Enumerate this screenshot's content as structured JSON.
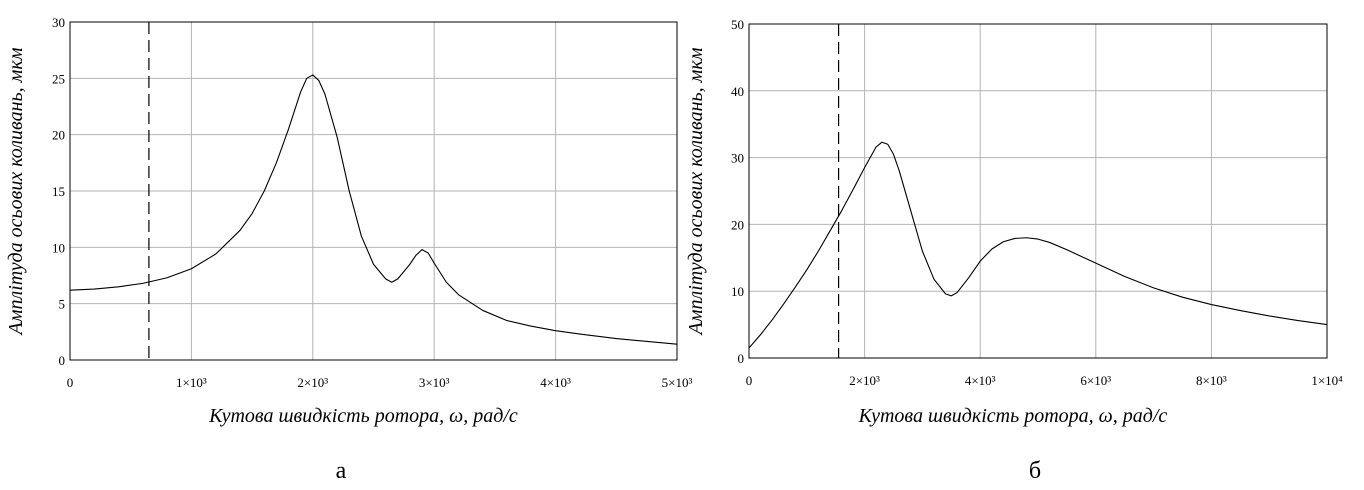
{
  "chart_data": [
    {
      "type": "line",
      "panel_label": "а",
      "xlabel": "Кутова швидкість ротора, ω, рад/с",
      "ylabel": "Амплітуда осьових коливань, мкм",
      "xlim": [
        0,
        5000
      ],
      "ylim": [
        0,
        30
      ],
      "x_ticks": [
        0,
        1000,
        2000,
        3000,
        4000,
        5000
      ],
      "x_tick_labels": [
        "0",
        "1×10³",
        "2×10³",
        "3×10³",
        "4×10³",
        "5×10³"
      ],
      "y_ticks": [
        0,
        5,
        10,
        15,
        20,
        25,
        30
      ],
      "y_tick_labels": [
        "0",
        "5",
        "10",
        "15",
        "20",
        "25",
        "30"
      ],
      "grid": true,
      "vertical_marker_x": 650,
      "series": [
        {
          "x": [
            0,
            200,
            400,
            600,
            800,
            1000,
            1200,
            1400,
            1500,
            1600,
            1700,
            1800,
            1900,
            1950,
            2000,
            2050,
            2100,
            2200,
            2300,
            2400,
            2500,
            2600,
            2650,
            2700,
            2800,
            2850,
            2900,
            2950,
            3000,
            3100,
            3200,
            3400,
            3600,
            3800,
            4000,
            4200,
            4500,
            4800,
            5000
          ],
          "y": [
            6.2,
            6.3,
            6.5,
            6.8,
            7.3,
            8.1,
            9.4,
            11.5,
            13.0,
            15.0,
            17.5,
            20.5,
            23.8,
            25.0,
            25.3,
            24.8,
            23.6,
            19.8,
            15.0,
            11.0,
            8.5,
            7.2,
            6.9,
            7.2,
            8.5,
            9.3,
            9.8,
            9.5,
            8.6,
            6.9,
            5.8,
            4.4,
            3.5,
            3.0,
            2.6,
            2.3,
            1.9,
            1.6,
            1.4
          ]
        }
      ]
    },
    {
      "type": "line",
      "panel_label": "б",
      "xlabel": "Кутова швидкість ротора, ω, рад/с",
      "ylabel": "Амплітуда осьових коливань, мкм",
      "xlim": [
        0,
        10000
      ],
      "ylim": [
        0,
        50
      ],
      "x_ticks": [
        0,
        2000,
        4000,
        6000,
        8000,
        10000
      ],
      "x_tick_labels": [
        "0",
        "2×10³",
        "4×10³",
        "6×10³",
        "8×10³",
        "1×10⁴"
      ],
      "y_ticks": [
        0,
        10,
        20,
        30,
        40,
        50
      ],
      "y_tick_labels": [
        "0",
        "10",
        "20",
        "30",
        "40",
        "50"
      ],
      "grid": true,
      "vertical_marker_x": 1550,
      "series": [
        {
          "x": [
            0,
            200,
            400,
            600,
            800,
            1000,
            1200,
            1400,
            1600,
            1800,
            2000,
            2200,
            2300,
            2400,
            2500,
            2600,
            2800,
            3000,
            3200,
            3400,
            3500,
            3600,
            3800,
            4000,
            4200,
            4400,
            4600,
            4800,
            5000,
            5200,
            5500,
            6000,
            6500,
            7000,
            7500,
            8000,
            8500,
            9000,
            9500,
            10000
          ],
          "y": [
            1.5,
            3.5,
            5.7,
            8.1,
            10.6,
            13.2,
            16.0,
            19.0,
            22.0,
            25.2,
            28.5,
            31.6,
            32.3,
            32.0,
            30.5,
            28.0,
            22.0,
            16.0,
            11.8,
            9.6,
            9.3,
            9.8,
            12.0,
            14.5,
            16.3,
            17.4,
            17.9,
            18.0,
            17.8,
            17.3,
            16.2,
            14.2,
            12.2,
            10.5,
            9.1,
            8.0,
            7.1,
            6.3,
            5.6,
            5.0
          ]
        }
      ]
    }
  ]
}
